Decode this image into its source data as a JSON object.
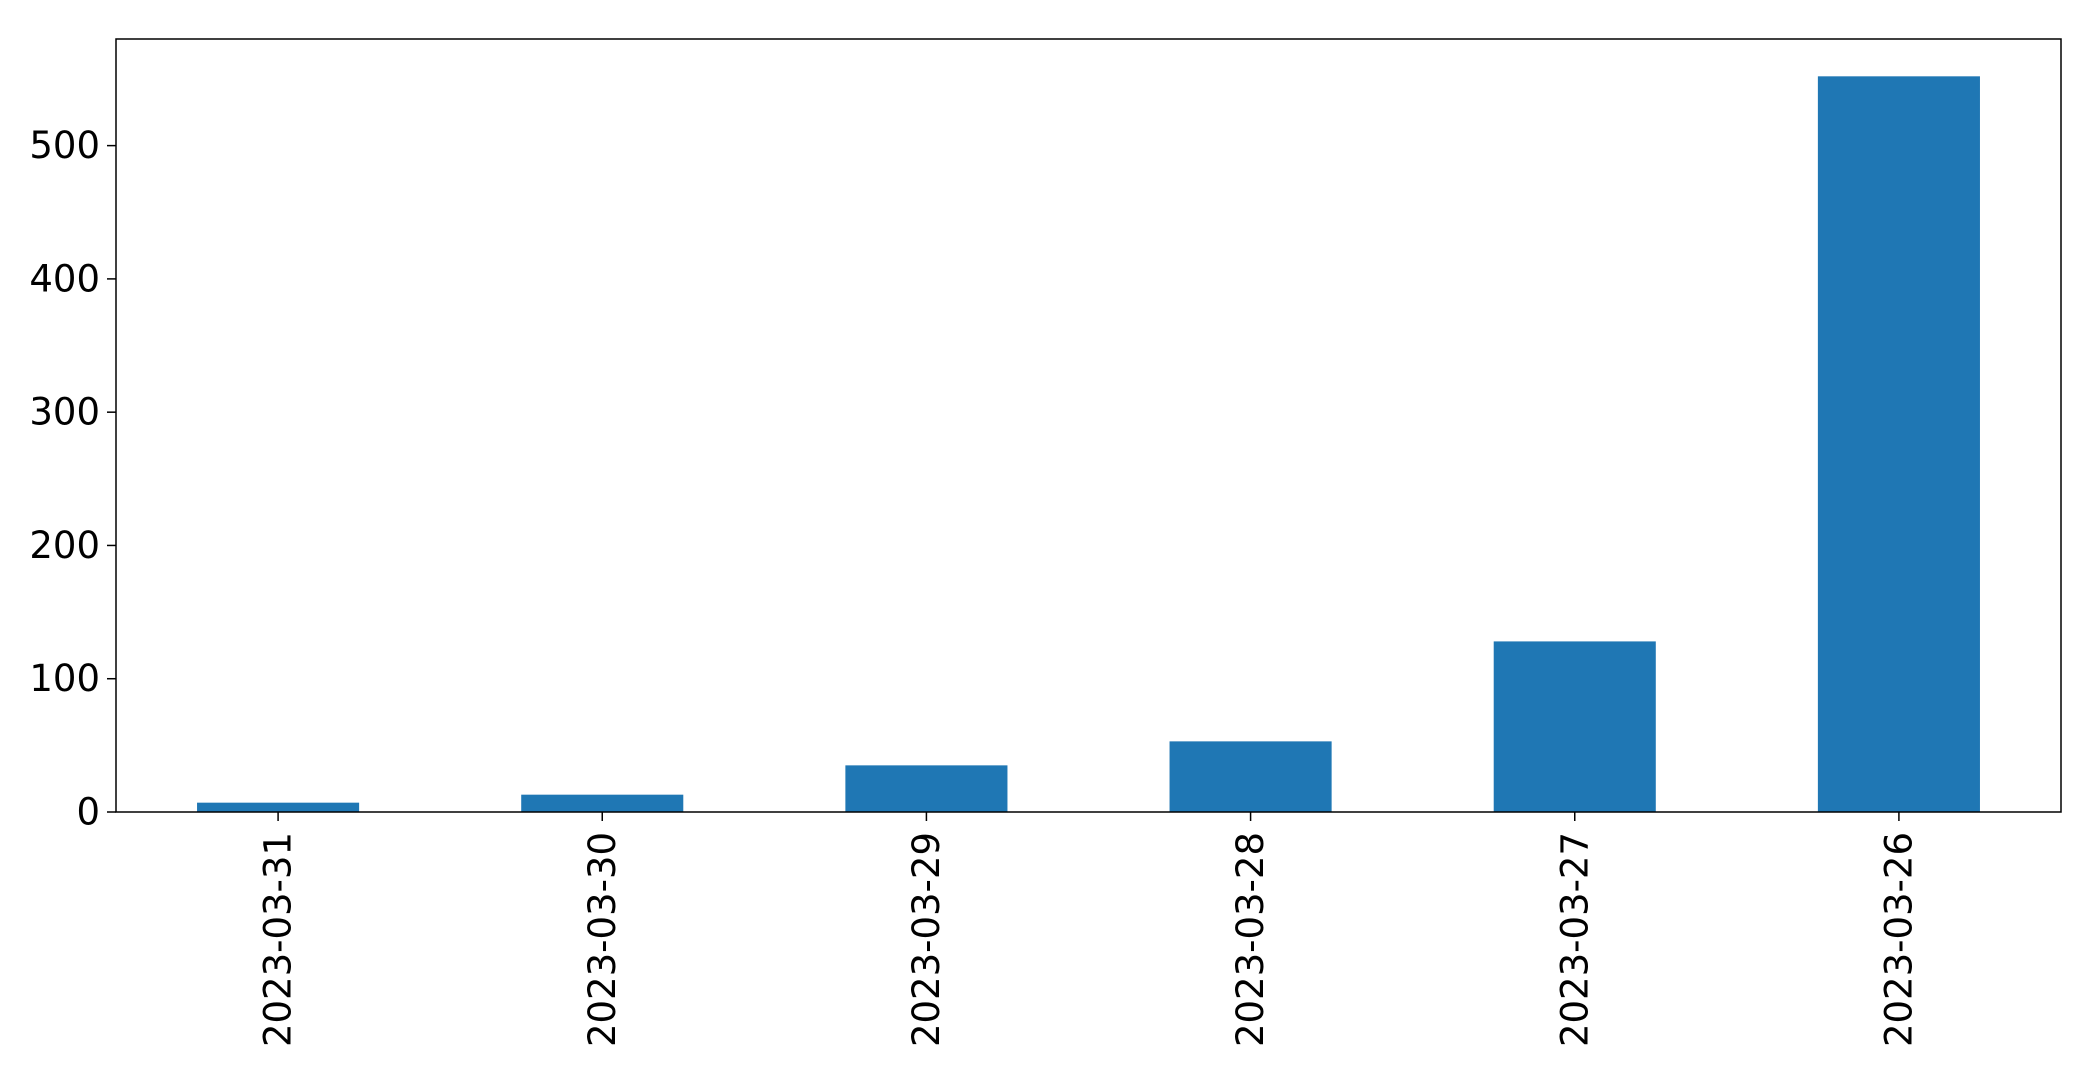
{
  "chart_data": {
    "type": "bar",
    "categories": [
      "2023-03-31",
      "2023-03-30",
      "2023-03-29",
      "2023-03-28",
      "2023-03-27",
      "2023-03-26"
    ],
    "values": [
      7,
      13,
      35,
      53,
      128,
      552
    ],
    "title": "",
    "xlabel": "",
    "ylabel": "",
    "ylim": [
      0,
      580
    ],
    "yticks": [
      0,
      100,
      200,
      300,
      400,
      500
    ],
    "grid": false,
    "legend": "none",
    "bar_color": "#1f77b4",
    "tick_label_rotation": "vertical"
  }
}
